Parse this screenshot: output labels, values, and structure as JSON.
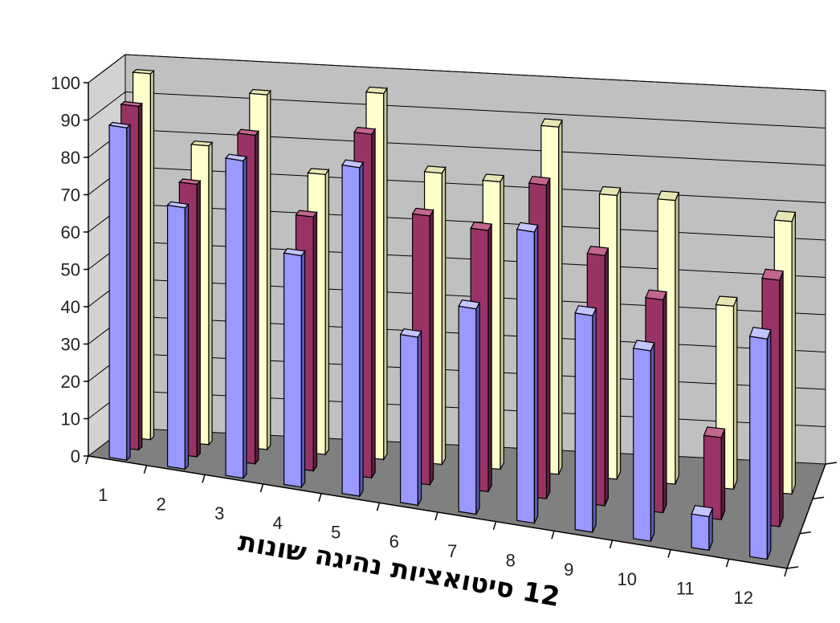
{
  "chart_data": {
    "type": "bar",
    "subtype": "3d-clustered-column",
    "title": "",
    "xlabel": "12 סיטואציות נהיגה שונות",
    "ylabel": "",
    "ylim": [
      0,
      100
    ],
    "yticks": [
      0,
      10,
      20,
      30,
      40,
      50,
      60,
      70,
      80,
      90,
      100
    ],
    "categories": [
      "1",
      "2",
      "3",
      "4",
      "5",
      "6",
      "7",
      "8",
      "9",
      "10",
      "11",
      "12"
    ],
    "grid": true,
    "legend": "none",
    "series": [
      {
        "values": [
          89,
          70,
          85,
          62,
          88,
          45,
          55,
          78,
          58,
          51,
          9,
          59
        ]
      },
      {
        "values": [
          92,
          73,
          88,
          68,
          92,
          72,
          70,
          84,
          67,
          57,
          22,
          66
        ]
      },
      {
        "values": [
          98,
          80,
          95,
          75,
          98,
          78,
          77,
          93,
          76,
          76,
          49,
          73
        ]
      }
    ],
    "colors": {
      "series_front": [
        "#9999ff",
        "#993366",
        "#ffffcc"
      ],
      "series_side": [
        "#5a5ab4",
        "#5e1f40",
        "#c8c898"
      ],
      "series_top": [
        "#c4c4ff",
        "#c2668f",
        "#e6e6b4"
      ],
      "back_wall": "#c0c0c0",
      "side_wall": "#d2d2d2",
      "floor": "#808080"
    }
  }
}
